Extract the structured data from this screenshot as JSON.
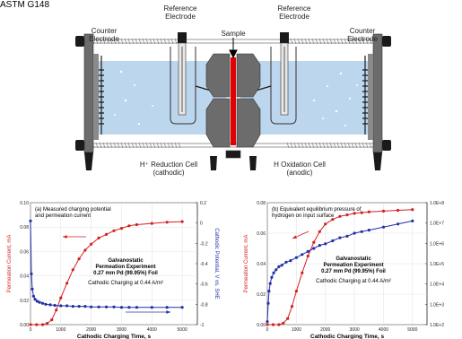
{
  "header": {
    "standard_label": "ASTM G148"
  },
  "apparatus": {
    "labels": {
      "counter_left": "Counter\nElectrode",
      "reference_left": "Reference\nElectrode",
      "sample": "Sample",
      "reference_right": "Reference\nElectrode",
      "counter_right": "Counter\nElectrode",
      "reduction_cell": "H⁺ Reduction Cell\n(cathodic)",
      "oxidation_cell": "H Oxidation Cell\n(anodic)"
    },
    "colors": {
      "solution": "#bcd6ee",
      "frame": "#6c6c6c",
      "sample": "#e00000",
      "dark": "#1a1a1a"
    }
  },
  "chart_data": [
    {
      "type": "line",
      "panel": "(a)",
      "annotation_title": "(a) Measured charging potential\nand permeation current",
      "annotation_experiment": "Galvanostatic\nPermeation Experiment\n0.27 mm Pd (99.95%) Foil",
      "annotation_charging": "Cathodic Charging at 0.44 A/m²",
      "xlabel": "Cathodic Charging Time, s",
      "ylabel_left": "Permeation Current, mA",
      "ylabel_right": "Cathodic Potential, V vs. SHE",
      "xlim": [
        0,
        5500
      ],
      "x_ticks": [
        "0",
        "1000",
        "2000",
        "3000",
        "4000",
        "5000"
      ],
      "ylim_left": [
        0,
        0.1
      ],
      "y_ticks_left": [
        "0.00",
        "0.02",
        "0.04",
        "0.06",
        "0.08",
        "0.10"
      ],
      "ylim_right": [
        -1.0,
        0.2
      ],
      "y_ticks_right": [
        "0.2",
        "0",
        "-0.2",
        "-0.4",
        "-0.6",
        "-0.8",
        "-1"
      ],
      "series": [
        {
          "axis": "left",
          "color": "#d42020",
          "x": [
            0,
            200,
            400,
            550,
            700,
            850,
            1000,
            1200,
            1400,
            1600,
            1800,
            2000,
            2250,
            2500,
            2750,
            3000,
            3250,
            3500,
            4000,
            4500,
            5000
          ],
          "values": [
            0,
            0,
            0,
            0.001,
            0.004,
            0.012,
            0.022,
            0.034,
            0.045,
            0.054,
            0.061,
            0.066,
            0.071,
            0.074,
            0.077,
            0.079,
            0.081,
            0.082,
            0.083,
            0.084,
            0.0845
          ]
        },
        {
          "axis": "right",
          "color": "#2030a8",
          "x": [
            0,
            30,
            60,
            100,
            150,
            220,
            300,
            400,
            500,
            650,
            800,
            1000,
            1200,
            1400,
            1600,
            1800,
            2000,
            2250,
            2500,
            2750,
            3000,
            3250,
            3500,
            4000,
            4500,
            5000
          ],
          "values": [
            0.02,
            -0.5,
            -0.65,
            -0.72,
            -0.75,
            -0.77,
            -0.78,
            -0.79,
            -0.8,
            -0.805,
            -0.81,
            -0.815,
            -0.815,
            -0.82,
            -0.82,
            -0.82,
            -0.825,
            -0.825,
            -0.825,
            -0.825,
            -0.83,
            -0.83,
            -0.83,
            -0.83,
            -0.83,
            -0.83
          ]
        }
      ]
    },
    {
      "type": "line",
      "panel": "(b)",
      "annotation_title": "(b) Equivalent equilibrium pressure of\nhydrogen on input surface",
      "annotation_experiment": "Galvanostatic\nPermeation Experiment\n0.27 mm Pd (99.95%) Foil",
      "annotation_charging": "Cathodic Charging at 0.44 A/m²",
      "xlabel": "Cathodic Charging Time, s",
      "ylabel_left": "Permeation Current, mA",
      "xlim": [
        0,
        5500
      ],
      "x_ticks": [
        "0",
        "1000",
        "2000",
        "3000",
        "4000",
        "5000"
      ],
      "ylim_left": [
        0,
        0.08
      ],
      "y_ticks_left": [
        "0.00",
        "0.02",
        "0.04",
        "0.06",
        "0.08"
      ],
      "y_ticks_right": [
        "1.0E+8",
        "1.0E+7",
        "1.0E+6",
        "1.0E+5",
        "1.0E+4",
        "1.0E+3",
        "1.0E+2"
      ],
      "series": [
        {
          "axis": "left",
          "color": "#d42020",
          "x": [
            0,
            200,
            400,
            550,
            700,
            850,
            1000,
            1200,
            1400,
            1600,
            1800,
            2000,
            2250,
            2500,
            2750,
            3000,
            3250,
            3500,
            4000,
            4500,
            5000
          ],
          "values": [
            0,
            0,
            0,
            0.001,
            0.004,
            0.012,
            0.022,
            0.034,
            0.045,
            0.054,
            0.061,
            0.066,
            0.069,
            0.071,
            0.072,
            0.073,
            0.0735,
            0.074,
            0.0745,
            0.075,
            0.0755
          ]
        },
        {
          "axis": "left",
          "color": "#2030a8",
          "x": [
            0,
            30,
            60,
            100,
            150,
            220,
            300,
            400,
            500,
            650,
            800,
            1000,
            1200,
            1400,
            1600,
            1800,
            2000,
            2250,
            2500,
            2750,
            3000,
            3250,
            3500,
            4000,
            4500,
            5000
          ],
          "values": [
            0.002,
            0.014,
            0.022,
            0.027,
            0.031,
            0.034,
            0.036,
            0.038,
            0.039,
            0.041,
            0.042,
            0.044,
            0.046,
            0.048,
            0.05,
            0.052,
            0.053,
            0.055,
            0.057,
            0.058,
            0.06,
            0.061,
            0.062,
            0.064,
            0.066,
            0.068
          ]
        }
      ]
    }
  ]
}
